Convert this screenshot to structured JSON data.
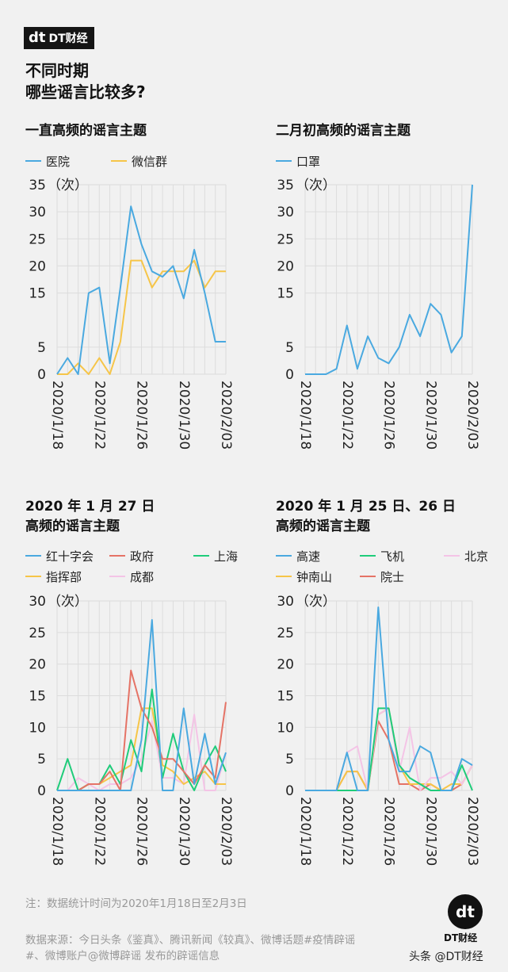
{
  "brand": {
    "logo": "dt",
    "name": "DT财经"
  },
  "main_title": [
    "不同时期",
    "哪些谣言比较多?"
  ],
  "notes": {
    "note": "注：数据统计时间为2020年1月18日至2月3日",
    "source_lines": [
      "数据来源：今日头条《鉴真》、腾讯新闻《较真》、微博话题#疫情辟谣",
      "#、微博账户@微博辟谣 发布的辟谣信息"
    ]
  },
  "footer_logo": {
    "mark": "dt",
    "caption": "DT财经"
  },
  "source_mark": "头条 @DT财经",
  "chart_data": [
    {
      "type": "line",
      "title": [
        "一直高频的谣言主题"
      ],
      "unit_label": "（次）",
      "ylim": [
        0,
        35
      ],
      "yticks": [
        0,
        5,
        15,
        20,
        25,
        30,
        35
      ],
      "x": [
        "2020/1/18",
        "2020/1/19",
        "2020/1/20",
        "2020/1/21",
        "2020/1/22",
        "2020/1/23",
        "2020/1/24",
        "2020/1/25",
        "2020/1/26",
        "2020/1/27",
        "2020/1/28",
        "2020/1/29",
        "2020/1/30",
        "2020/1/31",
        "2020/2/01",
        "2020/2/02",
        "2020/2/03"
      ],
      "xtick_labels": [
        "2020/1/18",
        "2020/1/22",
        "2020/1/26",
        "2020/1/30",
        "2020/2/03"
      ],
      "legend_rows": [
        [
          0,
          1
        ]
      ],
      "series": [
        {
          "name": "医院",
          "color": "#4aa9e0",
          "values": [
            0,
            3,
            0,
            15,
            16,
            2,
            16,
            31,
            24,
            19,
            18,
            20,
            14,
            23,
            15,
            6,
            6
          ]
        },
        {
          "name": "微信群",
          "color": "#f6c548",
          "values": [
            0,
            0,
            2,
            0,
            3,
            0,
            6,
            21,
            21,
            16,
            19,
            19,
            19,
            21,
            16,
            19,
            19
          ]
        }
      ]
    },
    {
      "type": "line",
      "title": [
        "二月初高频的谣言主题"
      ],
      "unit_label": "（次）",
      "ylim": [
        0,
        35
      ],
      "yticks": [
        0,
        5,
        15,
        20,
        25,
        30,
        35
      ],
      "x": [
        "2020/1/18",
        "2020/1/19",
        "2020/1/20",
        "2020/1/21",
        "2020/1/22",
        "2020/1/23",
        "2020/1/24",
        "2020/1/25",
        "2020/1/26",
        "2020/1/27",
        "2020/1/28",
        "2020/1/29",
        "2020/1/30",
        "2020/1/31",
        "2020/2/01",
        "2020/2/02",
        "2020/2/03"
      ],
      "xtick_labels": [
        "2020/1/18",
        "2020/1/22",
        "2020/1/26",
        "2020/1/30",
        "2020/2/03"
      ],
      "legend_rows": [
        [
          0
        ]
      ],
      "series": [
        {
          "name": "口罩",
          "color": "#4aa9e0",
          "values": [
            0,
            0,
            0,
            1,
            9,
            1,
            7,
            3,
            2,
            5,
            11,
            7,
            13,
            11,
            4,
            7,
            35
          ]
        }
      ]
    },
    {
      "type": "line",
      "title": [
        "2020 年 1 月 27 日",
        "高频的谣言主题"
      ],
      "unit_label": "（次）",
      "ylim": [
        0,
        30
      ],
      "yticks": [
        0,
        5,
        10,
        15,
        20,
        25,
        30
      ],
      "x": [
        "2020/1/18",
        "2020/1/19",
        "2020/1/20",
        "2020/1/21",
        "2020/1/22",
        "2020/1/23",
        "2020/1/24",
        "2020/1/25",
        "2020/1/26",
        "2020/1/27",
        "2020/1/28",
        "2020/1/29",
        "2020/1/30",
        "2020/1/31",
        "2020/2/01",
        "2020/2/02",
        "2020/2/03"
      ],
      "xtick_labels": [
        "2020/1/18",
        "2020/1/22",
        "2020/1/26",
        "2020/1/30",
        "2020/2/03"
      ],
      "legend_rows": [
        [
          0,
          1,
          2
        ],
        [
          3,
          4
        ]
      ],
      "series": [
        {
          "name": "红十字会",
          "color": "#4aa9e0",
          "values": [
            0,
            0,
            0,
            0,
            0,
            0,
            0,
            0,
            8,
            27,
            0,
            0,
            13,
            1,
            9,
            1,
            6
          ]
        },
        {
          "name": "政府",
          "color": "#e57366",
          "values": [
            0,
            0,
            0,
            1,
            1,
            3,
            0,
            19,
            13,
            10,
            5,
            5,
            3,
            1,
            4,
            2,
            14
          ]
        },
        {
          "name": "上海",
          "color": "#1fcc7a",
          "values": [
            0,
            5,
            0,
            1,
            1,
            4,
            1,
            8,
            3,
            16,
            2,
            9,
            3,
            0,
            4,
            7,
            3
          ]
        },
        {
          "name": "指挥部",
          "color": "#f6c548",
          "values": [
            0,
            0,
            0,
            1,
            1,
            2,
            3,
            4,
            13,
            13,
            4,
            3,
            1,
            2,
            3,
            1,
            1
          ]
        },
        {
          "name": "成都",
          "color": "#f4c4e6",
          "values": [
            0,
            0,
            2,
            1,
            0,
            1,
            1,
            2,
            5,
            11,
            2,
            2,
            1,
            12,
            0,
            0,
            6
          ]
        }
      ]
    },
    {
      "type": "line",
      "title": [
        "2020 年 1 月 25 日、26 日",
        "高频的谣言主题"
      ],
      "unit_label": "（次）",
      "ylim": [
        0,
        30
      ],
      "yticks": [
        0,
        5,
        10,
        15,
        20,
        25,
        30
      ],
      "x": [
        "2020/1/18",
        "2020/1/19",
        "2020/1/20",
        "2020/1/21",
        "2020/1/22",
        "2020/1/23",
        "2020/1/24",
        "2020/1/25",
        "2020/1/26",
        "2020/1/27",
        "2020/1/28",
        "2020/1/29",
        "2020/1/30",
        "2020/1/31",
        "2020/2/01",
        "2020/2/02",
        "2020/2/03"
      ],
      "xtick_labels": [
        "2020/1/18",
        "2020/1/22",
        "2020/1/26",
        "2020/1/30",
        "2020/2/03"
      ],
      "legend_rows": [
        [
          0,
          1,
          2
        ],
        [
          3,
          4
        ]
      ],
      "series": [
        {
          "name": "高速",
          "color": "#4aa9e0",
          "values": [
            0,
            0,
            0,
            0,
            6,
            0,
            0,
            29,
            8,
            3,
            3,
            7,
            6,
            0,
            0,
            5,
            4
          ]
        },
        {
          "name": "飞机",
          "color": "#1fcc7a",
          "values": [
            0,
            0,
            0,
            0,
            0,
            0,
            0,
            13,
            13,
            4,
            2,
            1,
            0,
            0,
            0,
            4,
            0
          ]
        },
        {
          "name": "北京",
          "color": "#f4c4e6",
          "values": [
            0,
            0,
            0,
            0,
            6,
            7,
            0,
            12,
            13,
            3,
            10,
            0,
            2,
            2,
            3,
            1,
            4
          ]
        },
        {
          "name": "钟南山",
          "color": "#f6c548",
          "values": [
            0,
            0,
            0,
            0,
            3,
            3,
            0,
            12,
            13,
            4,
            1,
            1,
            1,
            0,
            1,
            1,
            4
          ]
        },
        {
          "name": "院士",
          "color": "#e57366",
          "values": [
            0,
            0,
            0,
            0,
            3,
            3,
            0,
            11,
            8,
            1,
            1,
            0,
            1,
            0,
            0,
            1,
            4
          ]
        }
      ]
    }
  ]
}
